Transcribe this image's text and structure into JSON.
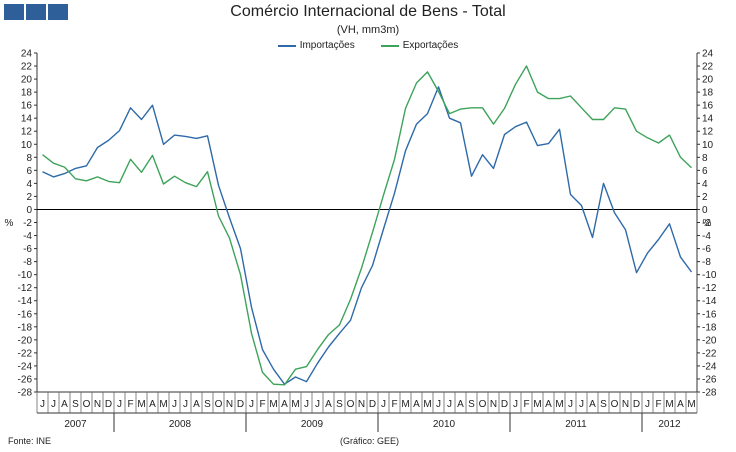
{
  "header": {
    "title": "Comércio Internacional de Bens - Total",
    "subtitle": "(VH, mm3m)"
  },
  "footer": {
    "source": "Fonte: INE",
    "credit": "(Gráfico: GEE)"
  },
  "colors": {
    "importacoes": "#2e6aa8",
    "exportacoes": "#3da35a",
    "logo": "#2f5f98"
  },
  "chart_data": {
    "type": "line",
    "title": "Comércio Internacional de Bens - Total",
    "subtitle": "(VH, mm3m)",
    "ylabel": "%",
    "ylim": [
      -28,
      24
    ],
    "yticks": [
      -28,
      -26,
      -24,
      -22,
      -20,
      -18,
      -16,
      -14,
      -12,
      -10,
      -8,
      -6,
      -4,
      -2,
      0,
      2,
      4,
      6,
      8,
      10,
      12,
      14,
      16,
      18,
      20,
      22,
      24
    ],
    "legend_position": "top-center",
    "x": [
      "J",
      "J",
      "A",
      "S",
      "O",
      "N",
      "D",
      "J",
      "F",
      "M",
      "A",
      "M",
      "J",
      "J",
      "A",
      "S",
      "O",
      "N",
      "D",
      "J",
      "F",
      "M",
      "A",
      "M",
      "J",
      "J",
      "A",
      "S",
      "O",
      "N",
      "D",
      "J",
      "F",
      "M",
      "A",
      "M",
      "J",
      "J",
      "A",
      "S",
      "O",
      "N",
      "D",
      "J",
      "F",
      "M",
      "A",
      "M",
      "J",
      "J",
      "A",
      "S",
      "O",
      "N",
      "D",
      "J",
      "F",
      "M",
      "A",
      "M"
    ],
    "years": [
      {
        "label": "2007",
        "start": 0,
        "end": 6
      },
      {
        "label": "2008",
        "start": 7,
        "end": 18
      },
      {
        "label": "2009",
        "start": 19,
        "end": 30
      },
      {
        "label": "2010",
        "start": 31,
        "end": 42
      },
      {
        "label": "2011",
        "start": 43,
        "end": 54
      },
      {
        "label": "2012",
        "start": 55,
        "end": 59
      }
    ],
    "series": [
      {
        "name": "Importações",
        "values": [
          5.8,
          5.0,
          5.5,
          6.3,
          6.7,
          9.5,
          10.6,
          12.1,
          15.6,
          13.8,
          16.0,
          10.0,
          11.4,
          11.2,
          10.9,
          11.3,
          3.7,
          -1.3,
          -6.0,
          -15.0,
          -21.5,
          -24.5,
          -26.8,
          -25.7,
          -26.4,
          -23.6,
          -21.1,
          -19.0,
          -17.0,
          -12.0,
          -8.6,
          -3.0,
          2.5,
          9.0,
          13.1,
          14.7,
          18.8,
          14.0,
          13.3,
          5.1,
          8.4,
          6.3,
          11.5,
          12.7,
          13.4,
          9.8,
          10.1,
          12.3,
          2.3,
          0.6,
          -4.3,
          4.0,
          -0.5,
          -3.1,
          -9.7,
          -6.7,
          -4.6,
          -2.2,
          -7.3,
          -9.6
        ]
      },
      {
        "name": "Exportações",
        "values": [
          8.4,
          7.1,
          6.5,
          4.7,
          4.4,
          5.0,
          4.3,
          4.1,
          7.7,
          5.7,
          8.3,
          3.9,
          5.1,
          4.1,
          3.5,
          5.8,
          -1.0,
          -4.4,
          -10.0,
          -19.0,
          -25.0,
          -26.8,
          -26.9,
          -24.5,
          -24.1,
          -21.5,
          -19.2,
          -17.7,
          -13.8,
          -9.0,
          -3.5,
          2.2,
          7.7,
          15.5,
          19.4,
          21.1,
          18.1,
          14.7,
          15.4,
          15.6,
          15.6,
          13.1,
          15.5,
          19.2,
          22.0,
          18.0,
          17.0,
          17.0,
          17.4,
          15.6,
          13.8,
          13.8,
          15.6,
          15.4,
          12.0,
          11.0,
          10.2,
          11.4,
          8.0,
          6.4
        ]
      }
    ]
  }
}
